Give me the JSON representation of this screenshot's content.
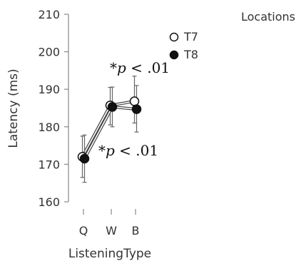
{
  "chart_data": {
    "type": "line",
    "xlabel": "ListeningType",
    "ylabel": "Latency (ms)",
    "categories": [
      "Q",
      "W",
      "B"
    ],
    "ylim": [
      160,
      210
    ],
    "yticks": [
      160,
      170,
      180,
      190,
      200,
      210
    ],
    "legend": {
      "title": "Locations",
      "placement": "top-right"
    },
    "series": [
      {
        "name": "T7",
        "marker": "open-circle",
        "values": [
          172.0,
          185.7,
          186.8
        ],
        "error_low": [
          166.5,
          180.5,
          181.0
        ],
        "error_high": [
          177.5,
          190.5,
          193.5
        ]
      },
      {
        "name": "T8",
        "marker": "filled-circle",
        "values": [
          171.5,
          185.3,
          184.7
        ],
        "error_low": [
          165.2,
          180.0,
          178.6
        ],
        "error_high": [
          177.8,
          190.6,
          191.0
        ]
      }
    ],
    "annotations": [
      {
        "star": "*",
        "italic": "p",
        "rest": " < .01",
        "position": "above-B"
      },
      {
        "star": "*",
        "italic": "p",
        "rest": " < .01",
        "position": "below-W"
      }
    ],
    "colors": {
      "T7": "#ffffff",
      "T8": "#111111",
      "line": "#555555",
      "axis": "#888888"
    }
  }
}
